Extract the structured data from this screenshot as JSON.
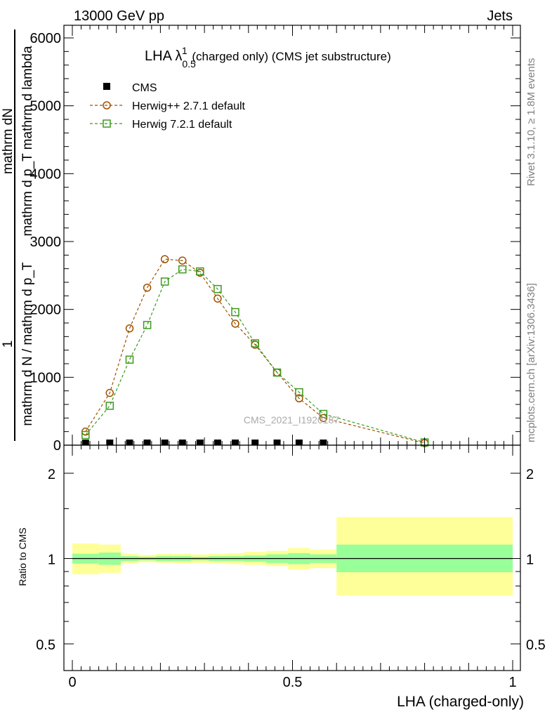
{
  "header": {
    "left": "13000 GeV pp",
    "right": "Jets"
  },
  "side_labels": {
    "rivet": "Rivet 3.1.10, ≥ 1.8M events",
    "mcplots": "mcplots.cern.ch [arXiv:1306.3436]"
  },
  "chart_data": [
    {
      "type": "line",
      "title_main": "LHA λ",
      "title_sup": "1",
      "title_sub": "0.5",
      "title_rest": " (charged only) (CMS jet substructure)",
      "watermark": "CMS_2021_I1920187",
      "ylabel_top": "mathrm dN",
      "ylabel_top2": "mathrm d p_T mathrm d lambda",
      "ylabel_one": "1",
      "ylabel_bottom": "mathrm d N / mathrm d p_T",
      "xlim": [
        0,
        1
      ],
      "ylim": [
        0,
        6000
      ],
      "yticks": [
        "0",
        "1000",
        "2000",
        "3000",
        "4000",
        "5000",
        "6000"
      ],
      "legend": [
        "CMS",
        "Herwig++ 2.7.1 default",
        "Herwig 7.2.1 default"
      ],
      "series": [
        {
          "name": "CMS",
          "color": "#000000",
          "marker": "filled-square",
          "x": [
            0.03,
            0.085,
            0.13,
            0.17,
            0.21,
            0.25,
            0.29,
            0.33,
            0.37,
            0.415,
            0.465,
            0.515,
            0.57
          ],
          "y": [
            0,
            0,
            0,
            0,
            0,
            0,
            0,
            0,
            0,
            0,
            0,
            0,
            0
          ]
        },
        {
          "name": "Herwig++ 2.7.1 default",
          "color": "#a05000",
          "marker": "open-circle",
          "x": [
            0.03,
            0.085,
            0.13,
            0.17,
            0.21,
            0.25,
            0.29,
            0.33,
            0.37,
            0.415,
            0.465,
            0.515,
            0.57,
            0.8
          ],
          "y": [
            200,
            770,
            1720,
            2320,
            2740,
            2720,
            2540,
            2160,
            1790,
            1480,
            1070,
            690,
            400,
            30
          ]
        },
        {
          "name": "Herwig 7.2.1 default",
          "color": "#3c9a1e",
          "marker": "open-square",
          "x": [
            0.03,
            0.085,
            0.13,
            0.17,
            0.21,
            0.25,
            0.29,
            0.33,
            0.37,
            0.415,
            0.465,
            0.515,
            0.57,
            0.8
          ],
          "y": [
            150,
            580,
            1260,
            1770,
            2410,
            2590,
            2560,
            2300,
            1960,
            1500,
            1070,
            780,
            460,
            40
          ]
        }
      ]
    },
    {
      "type": "area",
      "ylabel": "Ratio to CMS",
      "xlabel": "LHA (charged-only)",
      "xlim": [
        0,
        1
      ],
      "xticks": [
        "0",
        "0.5",
        "1"
      ],
      "yticks": [
        "0.5",
        "1",
        "2"
      ],
      "bands": [
        {
          "x0": 0.0,
          "x1": 0.06,
          "inner": [
            0.96,
            1.04
          ],
          "outer": [
            0.88,
            1.13
          ]
        },
        {
          "x0": 0.06,
          "x1": 0.11,
          "inner": [
            0.95,
            1.05
          ],
          "outer": [
            0.89,
            1.12
          ]
        },
        {
          "x0": 0.11,
          "x1": 0.15,
          "inner": [
            0.98,
            1.02
          ],
          "outer": [
            0.96,
            1.04
          ]
        },
        {
          "x0": 0.15,
          "x1": 0.19,
          "inner": [
            0.985,
            1.015
          ],
          "outer": [
            0.97,
            1.03
          ]
        },
        {
          "x0": 0.19,
          "x1": 0.23,
          "inner": [
            0.98,
            1.02
          ],
          "outer": [
            0.965,
            1.04
          ]
        },
        {
          "x0": 0.23,
          "x1": 0.27,
          "inner": [
            0.98,
            1.02
          ],
          "outer": [
            0.96,
            1.04
          ]
        },
        {
          "x0": 0.27,
          "x1": 0.31,
          "inner": [
            0.985,
            1.015
          ],
          "outer": [
            0.965,
            1.035
          ]
        },
        {
          "x0": 0.31,
          "x1": 0.35,
          "inner": [
            0.98,
            1.02
          ],
          "outer": [
            0.96,
            1.04
          ]
        },
        {
          "x0": 0.35,
          "x1": 0.39,
          "inner": [
            0.98,
            1.02
          ],
          "outer": [
            0.955,
            1.045
          ]
        },
        {
          "x0": 0.39,
          "x1": 0.44,
          "inner": [
            0.975,
            1.025
          ],
          "outer": [
            0.95,
            1.055
          ]
        },
        {
          "x0": 0.44,
          "x1": 0.49,
          "inner": [
            0.965,
            1.035
          ],
          "outer": [
            0.94,
            1.065
          ]
        },
        {
          "x0": 0.49,
          "x1": 0.54,
          "inner": [
            0.955,
            1.045
          ],
          "outer": [
            0.915,
            1.09
          ]
        },
        {
          "x0": 0.54,
          "x1": 0.6,
          "inner": [
            0.965,
            1.035
          ],
          "outer": [
            0.925,
            1.075
          ]
        },
        {
          "x0": 0.6,
          "x1": 1.0,
          "inner": [
            0.895,
            1.12
          ],
          "outer": [
            0.74,
            1.4
          ]
        }
      ],
      "colors": {
        "inner": "#99ff99",
        "outer": "#ffff99"
      }
    }
  ]
}
